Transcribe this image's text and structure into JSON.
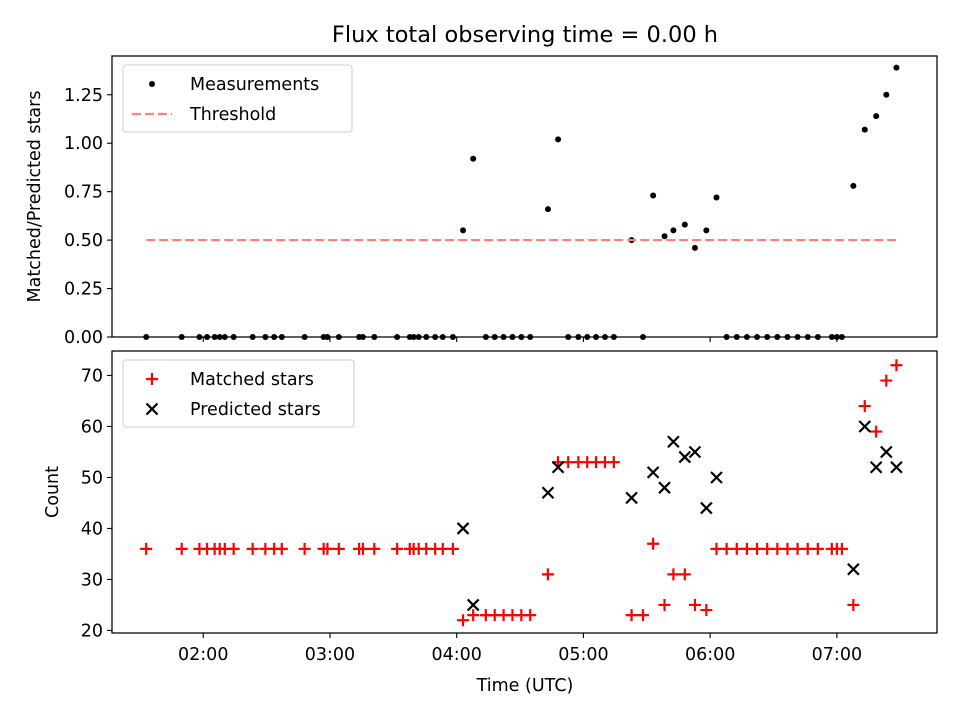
{
  "figure": {
    "title": "Flux total observing time = 0.00 h",
    "xlabel": "Time (UTC)"
  },
  "chart_data": [
    {
      "type": "scatter",
      "panel": "top",
      "title": "Flux total observing time = 0.00 h",
      "xlabel": "",
      "ylabel": "Matched/Predicted stars",
      "xlim": [
        1.28,
        7.79
      ],
      "ylim": [
        0.0,
        1.45
      ],
      "yticks": [
        0.0,
        0.25,
        0.5,
        0.75,
        1.0,
        1.25
      ],
      "ytick_labels": [
        "0.00",
        "0.25",
        "0.50",
        "0.75",
        "1.00",
        "1.25"
      ],
      "xticks": [
        2,
        3,
        4,
        5,
        6,
        7
      ],
      "legend_position": "top-left",
      "grid": false,
      "series": [
        {
          "name": "Measurements",
          "kind": "points",
          "color": "#000000",
          "x": [
            1.55,
            1.83,
            1.97,
            2.03,
            2.09,
            2.13,
            2.17,
            2.24,
            2.39,
            2.49,
            2.56,
            2.62,
            2.8,
            2.95,
            2.98,
            3.07,
            3.23,
            3.26,
            3.35,
            3.53,
            3.63,
            3.66,
            3.7,
            3.76,
            3.83,
            3.89,
            3.97,
            4.05,
            4.13,
            4.23,
            4.3,
            4.37,
            4.44,
            4.51,
            4.58,
            4.72,
            4.8,
            4.88,
            4.96,
            5.03,
            5.1,
            5.17,
            5.24,
            5.38,
            5.47,
            5.55,
            5.64,
            5.71,
            5.8,
            5.88,
            5.97,
            6.05,
            6.13,
            6.21,
            6.29,
            6.37,
            6.45,
            6.53,
            6.61,
            6.69,
            6.77,
            6.85,
            6.96,
            7.0,
            7.04,
            7.13,
            7.22,
            7.31,
            7.39,
            7.47
          ],
          "y": [
            0,
            0,
            0,
            0,
            0,
            0,
            0,
            0,
            0,
            0,
            0,
            0,
            0,
            0,
            0,
            0,
            0,
            0,
            0,
            0,
            0,
            0,
            0,
            0,
            0,
            0,
            0,
            0.55,
            0.92,
            0,
            0,
            0,
            0,
            0,
            0,
            0.66,
            1.02,
            0,
            0,
            0,
            0,
            0,
            0,
            0.5,
            0,
            0.73,
            0.52,
            0.55,
            0.58,
            0.46,
            0.55,
            0.72,
            0,
            0,
            0,
            0,
            0,
            0,
            0,
            0,
            0,
            0,
            0,
            0,
            0,
            0.78,
            1.07,
            1.14,
            1.25,
            1.39
          ]
        },
        {
          "name": "Threshold",
          "kind": "dashed-line",
          "color": "#ff7f7f",
          "x": [
            1.55,
            7.47
          ],
          "y": [
            0.5,
            0.5
          ]
        }
      ]
    },
    {
      "type": "scatter",
      "panel": "bottom",
      "xlabel": "Time (UTC)",
      "ylabel": "Count",
      "xlim": [
        1.28,
        7.79
      ],
      "ylim": [
        19.5,
        74.8
      ],
      "yticks": [
        20,
        30,
        40,
        50,
        60,
        70
      ],
      "ytick_labels": [
        "20",
        "30",
        "40",
        "50",
        "60",
        "70"
      ],
      "xticks": [
        2,
        3,
        4,
        5,
        6,
        7
      ],
      "xtick_labels": [
        "02:00",
        "03:00",
        "04:00",
        "05:00",
        "06:00",
        "07:00"
      ],
      "legend_position": "top-left",
      "grid": false,
      "series": [
        {
          "name": "Matched stars",
          "marker": "plus",
          "color": "#ff0000",
          "x": [
            1.55,
            1.83,
            1.97,
            2.03,
            2.09,
            2.13,
            2.17,
            2.24,
            2.39,
            2.49,
            2.56,
            2.62,
            2.8,
            2.95,
            2.98,
            3.07,
            3.23,
            3.26,
            3.35,
            3.53,
            3.63,
            3.66,
            3.7,
            3.76,
            3.83,
            3.89,
            3.97,
            4.05,
            4.13,
            4.23,
            4.3,
            4.37,
            4.44,
            4.51,
            4.58,
            4.72,
            4.8,
            4.88,
            4.96,
            5.03,
            5.1,
            5.17,
            5.24,
            5.38,
            5.47,
            5.55,
            5.64,
            5.71,
            5.8,
            5.88,
            5.97,
            6.05,
            6.13,
            6.21,
            6.29,
            6.37,
            6.45,
            6.53,
            6.61,
            6.69,
            6.77,
            6.85,
            6.96,
            7.0,
            7.04,
            7.13,
            7.22,
            7.31,
            7.39,
            7.47
          ],
          "y": [
            36,
            36,
            36,
            36,
            36,
            36,
            36,
            36,
            36,
            36,
            36,
            36,
            36,
            36,
            36,
            36,
            36,
            36,
            36,
            36,
            36,
            36,
            36,
            36,
            36,
            36,
            36,
            22,
            23,
            23,
            23,
            23,
            23,
            23,
            23,
            31,
            53,
            53,
            53,
            53,
            53,
            53,
            53,
            23,
            23,
            37,
            25,
            31,
            31,
            25,
            24,
            36,
            36,
            36,
            36,
            36,
            36,
            36,
            36,
            36,
            36,
            36,
            36,
            36,
            36,
            25,
            64,
            59,
            69,
            72
          ]
        },
        {
          "name": "Predicted stars",
          "marker": "x",
          "color": "#000000",
          "x": [
            4.05,
            4.13,
            4.72,
            4.8,
            5.38,
            5.55,
            5.64,
            5.71,
            5.8,
            5.88,
            5.97,
            6.05,
            7.13,
            7.22,
            7.31,
            7.39,
            7.47
          ],
          "y": [
            40,
            25,
            47,
            52,
            46,
            51,
            48,
            57,
            54,
            55,
            44,
            50,
            32,
            60,
            52,
            55,
            52
          ]
        }
      ]
    }
  ]
}
